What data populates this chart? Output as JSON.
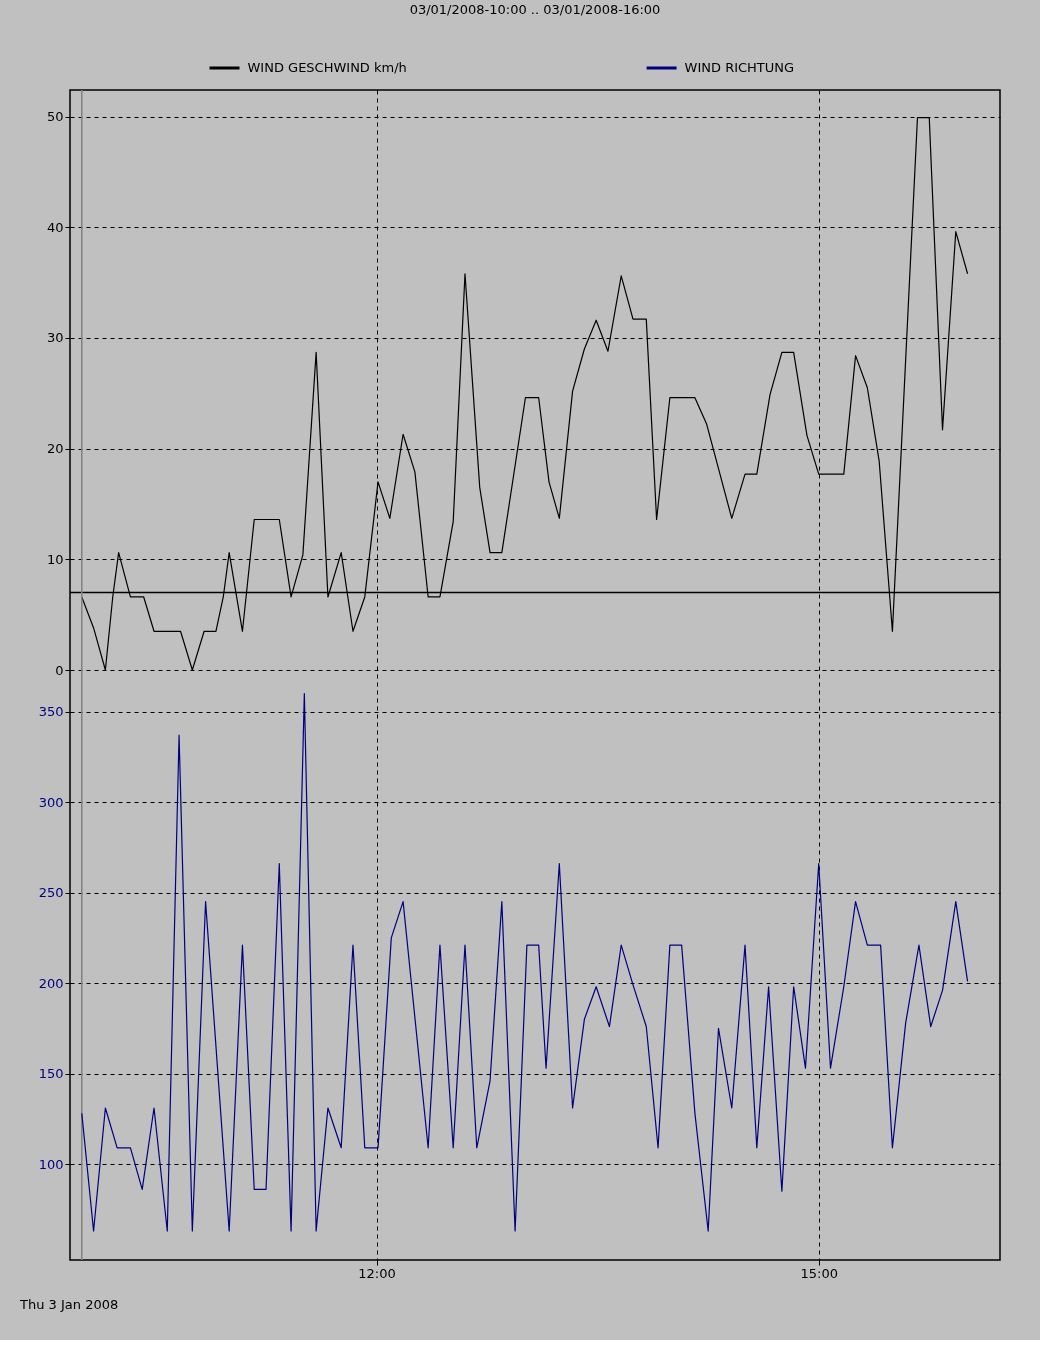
{
  "chart_data": {
    "type": "line",
    "title": "03/01/2008-10:00 .. 03/01/2008-16:00",
    "x": [
      10.0,
      10.08,
      10.16,
      10.21,
      10.25,
      10.33,
      10.42,
      10.49,
      10.67,
      10.75,
      10.83,
      10.91,
      10.96,
      11.0,
      11.09,
      11.17,
      11.34,
      11.42,
      11.5,
      11.59,
      11.67,
      11.76,
      11.84,
      11.92,
      12.01,
      12.09,
      12.18,
      12.26,
      12.35,
      12.43,
      12.52,
      12.6,
      12.7,
      12.77,
      12.85,
      13.01,
      13.1,
      13.17,
      13.24,
      13.33,
      13.41,
      13.49,
      13.57,
      13.66,
      13.74,
      13.83,
      13.9,
      13.99,
      14.16,
      14.24,
      14.33,
      14.41,
      14.5,
      14.58,
      14.67,
      14.75,
      14.83,
      14.92,
      15.0,
      15.17,
      15.25,
      15.33,
      15.41,
      15.5,
      15.67,
      15.75,
      15.84,
      15.93,
      16.01
    ],
    "series": [
      {
        "name": "WIND GESCHWIND km/h",
        "color": "#000000",
        "values": [
          6.6,
          3.8,
          0,
          6.6,
          10.6,
          6.6,
          6.6,
          3.5,
          3.5,
          0,
          3.5,
          3.5,
          6.6,
          10.6,
          3.5,
          13.6,
          13.6,
          6.6,
          10.4,
          28.7,
          6.6,
          10.6,
          3.5,
          6.6,
          17.0,
          13.7,
          21.3,
          17.9,
          6.6,
          6.6,
          13.4,
          35.8,
          16.5,
          10.6,
          10.6,
          24.6,
          24.6,
          17.0,
          13.7,
          25.2,
          29.0,
          31.6,
          28.8,
          35.6,
          31.7,
          31.7,
          13.6,
          24.6,
          24.6,
          22.2,
          17.7,
          13.7,
          17.7,
          17.7,
          24.9,
          28.7,
          28.7,
          21.2,
          17.7,
          17.7,
          28.4,
          25.5,
          18.9,
          3.5,
          49.9,
          49.9,
          21.7,
          39.6,
          35.8
        ]
      },
      {
        "name": "WIND RICHTUNG",
        "color": "#000080",
        "axis": "y2",
        "x": [
          10.0,
          10.08,
          10.16,
          10.24,
          10.33,
          10.41,
          10.49,
          10.58,
          10.66,
          10.75,
          10.84,
          11.0,
          11.09,
          11.17,
          11.25,
          11.34,
          11.42,
          11.51,
          11.59,
          11.67,
          11.76,
          11.84,
          11.92,
          12.01,
          12.1,
          12.18,
          12.35,
          12.43,
          12.52,
          12.6,
          12.68,
          12.77,
          12.85,
          12.94,
          13.02,
          13.1,
          13.15,
          13.24,
          13.33,
          13.41,
          13.49,
          13.58,
          13.66,
          13.74,
          13.83,
          13.91,
          13.99,
          14.07,
          14.16,
          14.25,
          14.32,
          14.41,
          14.5,
          14.58,
          14.66,
          14.75,
          14.83,
          14.91,
          15.0,
          15.08,
          15.17,
          15.25,
          15.33,
          15.42,
          15.5,
          15.59,
          15.68,
          15.76,
          15.84,
          15.93,
          16.01
        ],
        "values": [
          128,
          63,
          131,
          109,
          109,
          86,
          131,
          63,
          337,
          63,
          245,
          63,
          221,
          86,
          86,
          266,
          63,
          360,
          63,
          131,
          109,
          221,
          109,
          109,
          225,
          245,
          109,
          221,
          109,
          221,
          109,
          146,
          245,
          63,
          221,
          221,
          153,
          266,
          131,
          180,
          198,
          176,
          221,
          199,
          176,
          109,
          221,
          221,
          128,
          63,
          175,
          131,
          221,
          109,
          198,
          85,
          198,
          153,
          266,
          153,
          198,
          245,
          221,
          221,
          109,
          178,
          221,
          176,
          196,
          245,
          201
        ]
      }
    ],
    "xlim": [
      9.92,
      16.23
    ],
    "xticks": [
      {
        "value": 12,
        "label": "12:00"
      },
      {
        "value": 15,
        "label": "15:00"
      }
    ],
    "ylim": [
      -53.3,
      52.4
    ],
    "yticks": [
      0,
      10,
      20,
      30,
      40,
      50
    ],
    "y2lim": [
      47,
      693.5
    ],
    "y2ticks": [
      100,
      150,
      200,
      250,
      300,
      350
    ],
    "ref_lines": [
      {
        "axis": "y",
        "value": 7,
        "color": "#000000"
      },
      {
        "axis": "x",
        "value": 10,
        "color": "#808080"
      }
    ],
    "annotations": [
      "Thu 3 Jan 2008"
    ],
    "grid": true,
    "legend": "top"
  }
}
